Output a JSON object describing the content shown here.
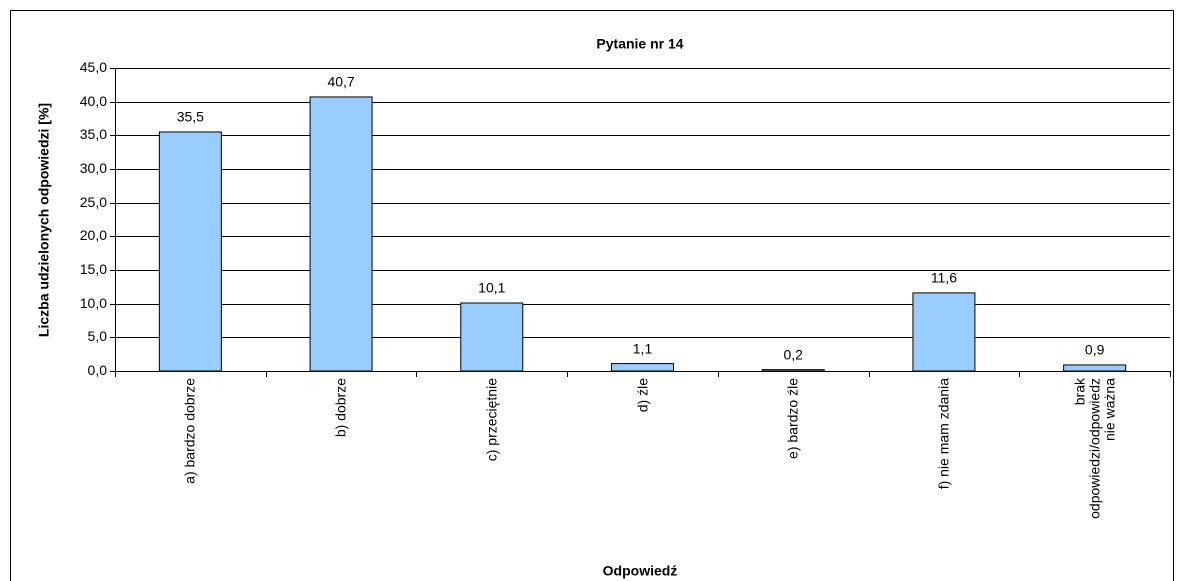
{
  "chart_data": {
    "type": "bar",
    "title": "Pytanie nr 14",
    "x_label": "Odpowiedź",
    "y_label": "Liczba udzielonych odpowiedzi [%]",
    "categories": [
      "a) bardzo dobrze",
      "b) dobrze",
      "c) przeciętnie",
      "d) źle",
      "e) bardzo źle",
      "f) nie mam zdania",
      "brak odpowiedzi/odpowiedz nie ważna"
    ],
    "values": [
      35.5,
      40.7,
      10.1,
      1.1,
      0.2,
      11.6,
      0.9
    ],
    "value_labels": [
      "35,5",
      "40,7",
      "10,1",
      "1,1",
      "0,2",
      "11,6",
      "0,9"
    ],
    "color": "#99ccff",
    "ylim": [
      0,
      45
    ],
    "yticks": [
      {
        "value": 0,
        "label": "0,0"
      },
      {
        "value": 5,
        "label": "5,0"
      },
      {
        "value": 10,
        "label": "10,0"
      },
      {
        "value": 15,
        "label": "15,0"
      },
      {
        "value": 20,
        "label": "20,0"
      },
      {
        "value": 25,
        "label": "25,0"
      },
      {
        "value": 30,
        "label": "30,0"
      },
      {
        "value": 35,
        "label": "35,0"
      },
      {
        "value": 40,
        "label": "40,0"
      },
      {
        "value": 45,
        "label": "45,0"
      }
    ],
    "grid": true
  }
}
